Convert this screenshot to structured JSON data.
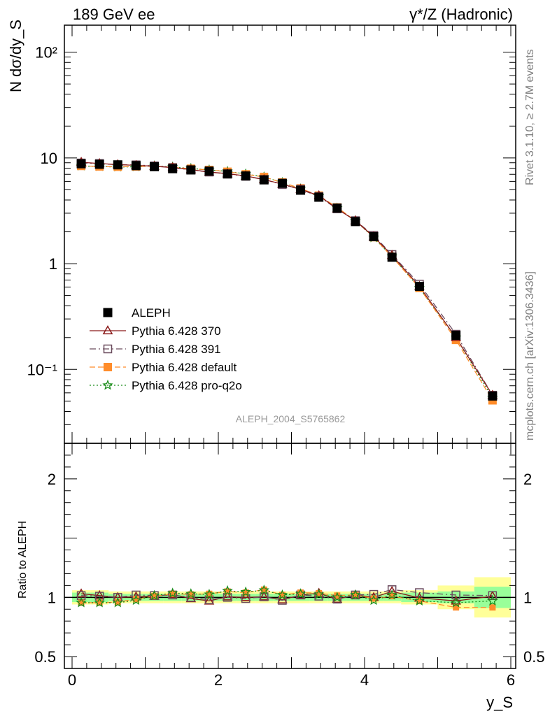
{
  "header": {
    "left": "189 GeV ee",
    "right": "γ*/Z (Hadronic)"
  },
  "side_text": {
    "rivet": "Rivet 3.1.10, ≥ 2.7M events",
    "mcplots": "mcplots.cern.ch [arXiv:1306.3436]"
  },
  "chart_data": [
    {
      "type": "line",
      "panel": "main",
      "ylabel": "N dσ/dy_S",
      "yscale": "log",
      "ylim": [
        0.02,
        180
      ],
      "xlim": [
        -0.1,
        6.1
      ],
      "analysis_id": "ALEPH_2004_S5765862",
      "y_tick_labels": [
        "10⁻¹",
        "1",
        "10",
        "10²"
      ],
      "y_tick_values": [
        0.1,
        1,
        10,
        100
      ],
      "legend_position": "lower-left",
      "x": [
        0.125,
        0.375,
        0.625,
        0.875,
        1.125,
        1.375,
        1.625,
        1.875,
        2.125,
        2.375,
        2.625,
        2.875,
        3.125,
        3.375,
        3.625,
        3.875,
        4.125,
        4.375,
        4.75,
        5.25,
        5.75
      ],
      "series": [
        {
          "name": "ALEPH",
          "color": "#000000",
          "marker": "filled-square",
          "line": "none",
          "values": [
            8.8,
            8.7,
            8.6,
            8.45,
            8.25,
            7.9,
            7.7,
            7.5,
            7.05,
            6.75,
            6.2,
            5.75,
            4.95,
            4.25,
            3.35,
            2.5,
            1.8,
            1.15,
            0.61,
            0.21,
            0.056
          ]
        },
        {
          "name": "Pythia 6.428 370",
          "color": "#8b1a1a",
          "marker": "open-triangle",
          "line": "solid",
          "values": [
            9.1,
            8.85,
            8.65,
            8.5,
            8.35,
            8.1,
            7.75,
            7.35,
            7.1,
            6.75,
            6.25,
            5.65,
            5.05,
            4.4,
            3.3,
            2.55,
            1.8,
            1.2,
            0.61,
            0.2,
            0.057
          ]
        },
        {
          "name": "Pythia 6.428 391",
          "color": "#6b4c5e",
          "marker": "open-square",
          "line": "dash-dot",
          "values": [
            8.95,
            8.85,
            8.6,
            8.6,
            8.4,
            8.1,
            7.7,
            7.35,
            7.05,
            6.7,
            6.25,
            5.6,
            5.05,
            4.3,
            3.3,
            2.55,
            1.85,
            1.22,
            0.64,
            0.215,
            0.057
          ]
        },
        {
          "name": "Pythia 6.428 default",
          "color": "#ff8c2a",
          "marker": "filled-square",
          "line": "dashed",
          "values": [
            8.4,
            8.3,
            8.25,
            8.3,
            8.35,
            8.15,
            7.9,
            7.7,
            7.4,
            7.0,
            6.6,
            5.85,
            5.15,
            4.4,
            3.4,
            2.55,
            1.78,
            1.16,
            0.59,
            0.19,
            0.051
          ]
        },
        {
          "name": "Pythia 6.428 pro-q2o",
          "color": "#1a8c1a",
          "marker": "star",
          "line": "dotted",
          "values": [
            8.4,
            8.3,
            8.2,
            8.25,
            8.4,
            8.2,
            7.95,
            7.7,
            7.45,
            7.05,
            6.6,
            5.85,
            5.1,
            4.35,
            3.35,
            2.55,
            1.76,
            1.17,
            0.59,
            0.2,
            0.054
          ]
        }
      ]
    },
    {
      "type": "line",
      "panel": "ratio",
      "ylabel": "Ratio to ALEPH",
      "xlabel": "y_S",
      "ylim": [
        0.4,
        2.3
      ],
      "xlim": [
        -0.1,
        6.1
      ],
      "x_tick_labels": [
        "0",
        "2",
        "4",
        "6"
      ],
      "x_tick_values": [
        0,
        2,
        4,
        6
      ],
      "y_tick_labels": [
        "0.5",
        "1",
        "2"
      ],
      "y_tick_values": [
        0.5,
        1,
        2
      ],
      "x_edges": [
        0,
        0.25,
        0.5,
        0.75,
        1.0,
        1.25,
        1.5,
        1.75,
        2.0,
        2.25,
        2.5,
        2.75,
        3.0,
        3.25,
        3.5,
        3.75,
        4.0,
        4.25,
        4.5,
        5.0,
        5.5,
        6.0
      ],
      "band_yellow": [
        0.06,
        0.06,
        0.05,
        0.05,
        0.05,
        0.05,
        0.05,
        0.05,
        0.05,
        0.05,
        0.05,
        0.05,
        0.05,
        0.05,
        0.05,
        0.05,
        0.05,
        0.05,
        0.06,
        0.1,
        0.17
      ],
      "band_green": [
        0.04,
        0.04,
        0.03,
        0.03,
        0.03,
        0.03,
        0.03,
        0.03,
        0.03,
        0.03,
        0.03,
        0.03,
        0.03,
        0.03,
        0.03,
        0.03,
        0.03,
        0.03,
        0.04,
        0.05,
        0.09
      ],
      "x": [
        0.125,
        0.375,
        0.625,
        0.875,
        1.125,
        1.375,
        1.625,
        1.875,
        2.125,
        2.375,
        2.625,
        2.875,
        3.125,
        3.375,
        3.625,
        3.875,
        4.125,
        4.375,
        4.75,
        5.25,
        5.75
      ],
      "series": [
        {
          "name": "Pythia 6.428 370",
          "values": [
            1.03,
            1.015,
            1.0,
            1.005,
            1.01,
            1.025,
            0.99,
            0.97,
            1.005,
            1.0,
            1.005,
            0.98,
            1.02,
            1.035,
            0.985,
            1.02,
            1.0,
            1.05,
            0.995,
            0.97,
            1.01
          ]
        },
        {
          "name": "Pythia 6.428 391",
          "values": [
            1.015,
            1.01,
            1.0,
            1.02,
            1.015,
            1.02,
            1.0,
            0.98,
            1.0,
            0.99,
            1.005,
            0.975,
            1.02,
            1.01,
            0.985,
            1.02,
            1.025,
            1.065,
            1.04,
            1.02,
            1.015
          ]
        },
        {
          "name": "Pythia 6.428 default",
          "values": [
            0.955,
            0.955,
            0.96,
            0.985,
            1.01,
            1.03,
            1.025,
            1.03,
            1.05,
            1.04,
            1.065,
            1.02,
            1.04,
            1.035,
            1.015,
            1.02,
            0.99,
            1.01,
            0.97,
            0.915,
            0.915
          ]
        },
        {
          "name": "Pythia 6.428 pro-q2o",
          "values": [
            0.955,
            0.955,
            0.955,
            0.975,
            1.015,
            1.035,
            1.03,
            1.025,
            1.055,
            1.045,
            1.06,
            1.02,
            1.03,
            1.025,
            1.0,
            1.02,
            0.975,
            1.02,
            0.97,
            0.955,
            0.97
          ]
        }
      ]
    }
  ]
}
